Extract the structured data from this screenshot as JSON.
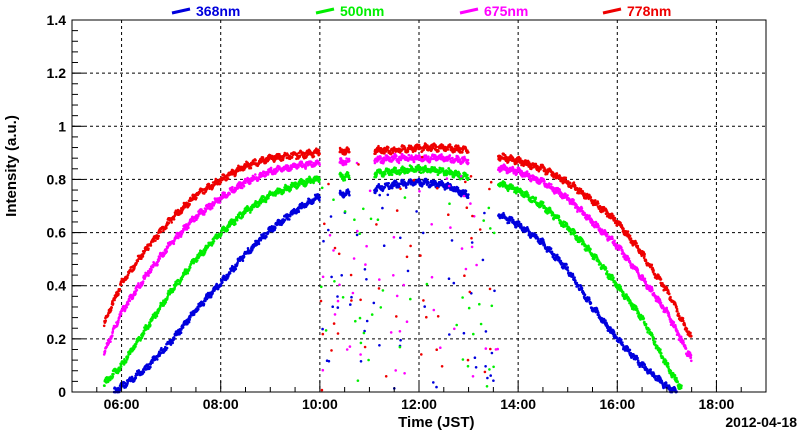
{
  "chart_data": {
    "type": "scatter",
    "title": "",
    "xlabel": "Time (JST)",
    "ylabel": "Intensity (a.u.)",
    "date_label": "2012-04-18",
    "x_unit": "hour of day (JST)",
    "xlim": [
      5.0,
      19.0
    ],
    "ylim": [
      0,
      1.4
    ],
    "x_ticks": [
      6,
      8,
      10,
      12,
      14,
      16,
      18
    ],
    "x_tick_labels": [
      "06:00",
      "08:00",
      "10:00",
      "12:00",
      "14:00",
      "16:00",
      "18:00"
    ],
    "y_ticks": [
      0,
      0.2,
      0.4,
      0.6,
      0.8,
      1,
      1.2,
      1.4
    ],
    "y_tick_labels": [
      "0",
      "0.2",
      "0.4",
      "0.6",
      "0.8",
      "1",
      "1.2",
      "1.4"
    ],
    "grid": true,
    "legend_position": "top",
    "series": [
      {
        "name": "368nm",
        "color": "#0000dd",
        "envelope": [
          [
            5.85,
            0.0
          ],
          [
            6.0,
            0.02
          ],
          [
            6.5,
            0.09
          ],
          [
            7.0,
            0.19
          ],
          [
            7.5,
            0.31
          ],
          [
            8.0,
            0.41
          ],
          [
            8.5,
            0.52
          ],
          [
            9.0,
            0.61
          ],
          [
            9.5,
            0.68
          ],
          [
            9.9,
            0.73
          ],
          [
            11.0,
            0.76
          ],
          [
            11.5,
            0.78
          ],
          [
            12.0,
            0.79
          ],
          [
            12.5,
            0.78
          ],
          [
            13.0,
            0.74
          ],
          [
            13.5,
            0.68
          ],
          [
            14.0,
            0.63
          ],
          [
            14.5,
            0.56
          ],
          [
            15.0,
            0.46
          ],
          [
            15.5,
            0.32
          ],
          [
            16.0,
            0.2
          ],
          [
            16.5,
            0.1
          ],
          [
            17.0,
            0.02
          ],
          [
            17.2,
            0.0
          ]
        ]
      },
      {
        "name": "500nm",
        "color": "#00ee00",
        "envelope": [
          [
            5.65,
            0.03
          ],
          [
            6.0,
            0.1
          ],
          [
            6.5,
            0.24
          ],
          [
            7.0,
            0.38
          ],
          [
            7.5,
            0.5
          ],
          [
            8.0,
            0.6
          ],
          [
            8.5,
            0.68
          ],
          [
            9.0,
            0.74
          ],
          [
            9.5,
            0.78
          ],
          [
            9.9,
            0.8
          ],
          [
            11.0,
            0.82
          ],
          [
            11.5,
            0.83
          ],
          [
            12.0,
            0.84
          ],
          [
            12.5,
            0.83
          ],
          [
            13.0,
            0.81
          ],
          [
            13.5,
            0.79
          ],
          [
            14.0,
            0.76
          ],
          [
            14.5,
            0.7
          ],
          [
            15.0,
            0.62
          ],
          [
            15.5,
            0.52
          ],
          [
            16.0,
            0.4
          ],
          [
            16.5,
            0.28
          ],
          [
            17.0,
            0.1
          ],
          [
            17.3,
            0.01
          ]
        ]
      },
      {
        "name": "675nm",
        "color": "#ff00ff",
        "envelope": [
          [
            5.65,
            0.15
          ],
          [
            6.0,
            0.3
          ],
          [
            6.5,
            0.44
          ],
          [
            7.0,
            0.56
          ],
          [
            7.5,
            0.66
          ],
          [
            8.0,
            0.73
          ],
          [
            8.5,
            0.79
          ],
          [
            9.0,
            0.83
          ],
          [
            9.5,
            0.85
          ],
          [
            9.9,
            0.86
          ],
          [
            11.0,
            0.87
          ],
          [
            11.5,
            0.88
          ],
          [
            12.0,
            0.88
          ],
          [
            12.5,
            0.88
          ],
          [
            13.0,
            0.87
          ],
          [
            13.5,
            0.85
          ],
          [
            14.0,
            0.83
          ],
          [
            14.5,
            0.79
          ],
          [
            15.0,
            0.73
          ],
          [
            15.5,
            0.64
          ],
          [
            16.0,
            0.55
          ],
          [
            16.5,
            0.43
          ],
          [
            17.0,
            0.3
          ],
          [
            17.5,
            0.12
          ]
        ]
      },
      {
        "name": "778nm",
        "color": "#ee0000",
        "envelope": [
          [
            5.65,
            0.26
          ],
          [
            6.0,
            0.41
          ],
          [
            6.5,
            0.54
          ],
          [
            7.0,
            0.65
          ],
          [
            7.5,
            0.74
          ],
          [
            8.0,
            0.8
          ],
          [
            8.5,
            0.85
          ],
          [
            9.0,
            0.88
          ],
          [
            9.5,
            0.89
          ],
          [
            9.9,
            0.9
          ],
          [
            11.0,
            0.91
          ],
          [
            11.5,
            0.91
          ],
          [
            12.0,
            0.92
          ],
          [
            12.5,
            0.92
          ],
          [
            13.0,
            0.91
          ],
          [
            13.5,
            0.89
          ],
          [
            14.0,
            0.87
          ],
          [
            14.5,
            0.84
          ],
          [
            15.0,
            0.79
          ],
          [
            15.5,
            0.72
          ],
          [
            16.0,
            0.64
          ],
          [
            16.5,
            0.52
          ],
          [
            17.0,
            0.38
          ],
          [
            17.5,
            0.2
          ]
        ]
      }
    ],
    "cloud_gaps": [
      [
        10.0,
        10.4
      ],
      [
        10.6,
        11.1
      ],
      [
        13.0,
        13.6
      ]
    ]
  }
}
